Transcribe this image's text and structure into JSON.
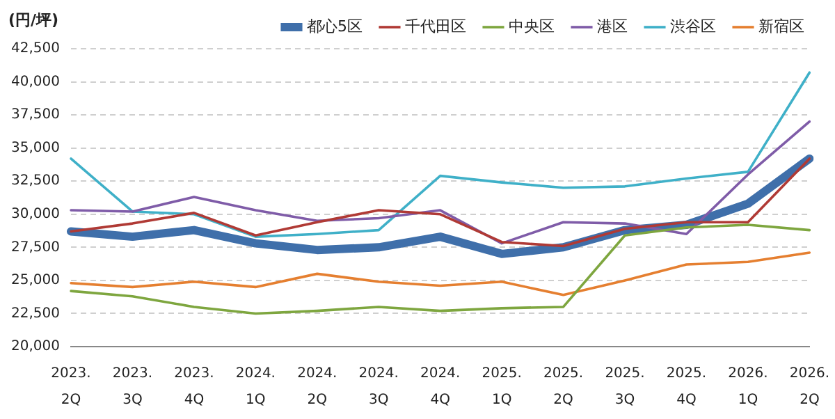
{
  "chart_data": {
    "type": "line",
    "ylabel": "(円/坪)",
    "categories": [
      "2023.\n2Q",
      "2023.\n3Q",
      "2023.\n4Q",
      "2024.\n1Q",
      "2024.\n2Q",
      "2024.\n3Q",
      "2024.\n4Q",
      "2025.\n1Q",
      "2025.\n2Q",
      "2025.\n3Q",
      "2025.\n4Q",
      "2026.\n1Q",
      "2026.\n2Q"
    ],
    "series": [
      {
        "name": "都心5区",
        "color": "#3f6faa",
        "values": [
          28700,
          28300,
          28800,
          27800,
          27300,
          27500,
          28300,
          27000,
          27500,
          28800,
          29200,
          30800,
          34200
        ]
      },
      {
        "name": "千代田区",
        "color": "#b03a35",
        "values": [
          28700,
          29300,
          30100,
          28400,
          29400,
          30300,
          30000,
          27900,
          27600,
          28900,
          29400,
          29400,
          34200
        ]
      },
      {
        "name": "中央区",
        "color": "#7ea63f",
        "values": [
          24200,
          23800,
          23000,
          22500,
          22700,
          23000,
          22700,
          22900,
          23000,
          28400,
          29000,
          29200,
          28800
        ]
      },
      {
        "name": "港区",
        "color": "#7f5ca8",
        "values": [
          30300,
          30200,
          31300,
          30300,
          29500,
          29700,
          30300,
          27800,
          29400,
          29300,
          28500,
          33000,
          37000
        ]
      },
      {
        "name": "渋谷区",
        "color": "#3fb0c8",
        "values": [
          34200,
          30200,
          30000,
          28300,
          28500,
          28800,
          32900,
          32400,
          32000,
          32100,
          32700,
          33200,
          40700
        ]
      },
      {
        "name": "新宿区",
        "color": "#e57f30",
        "values": [
          24800,
          24500,
          24900,
          24500,
          25500,
          24900,
          24600,
          24900,
          23900,
          25000,
          26200,
          26400,
          27100
        ]
      }
    ],
    "ylim": [
      20000,
      42500
    ],
    "yticks": [
      {
        "value": 20000,
        "label": "20,000"
      },
      {
        "value": 22500,
        "label": "22,500"
      },
      {
        "value": 25000,
        "label": "25,000"
      },
      {
        "value": 27500,
        "label": "27,500"
      },
      {
        "value": 30000,
        "label": "30,000"
      },
      {
        "value": 32500,
        "label": "32,500"
      },
      {
        "value": 35000,
        "label": "35,000"
      },
      {
        "value": 37500,
        "label": "37,500"
      },
      {
        "value": 40000,
        "label": "40,000"
      },
      {
        "value": 42500,
        "label": "42,500"
      }
    ],
    "grid": "y",
    "legend": "top",
    "marker": "none",
    "line_style": "solid"
  }
}
